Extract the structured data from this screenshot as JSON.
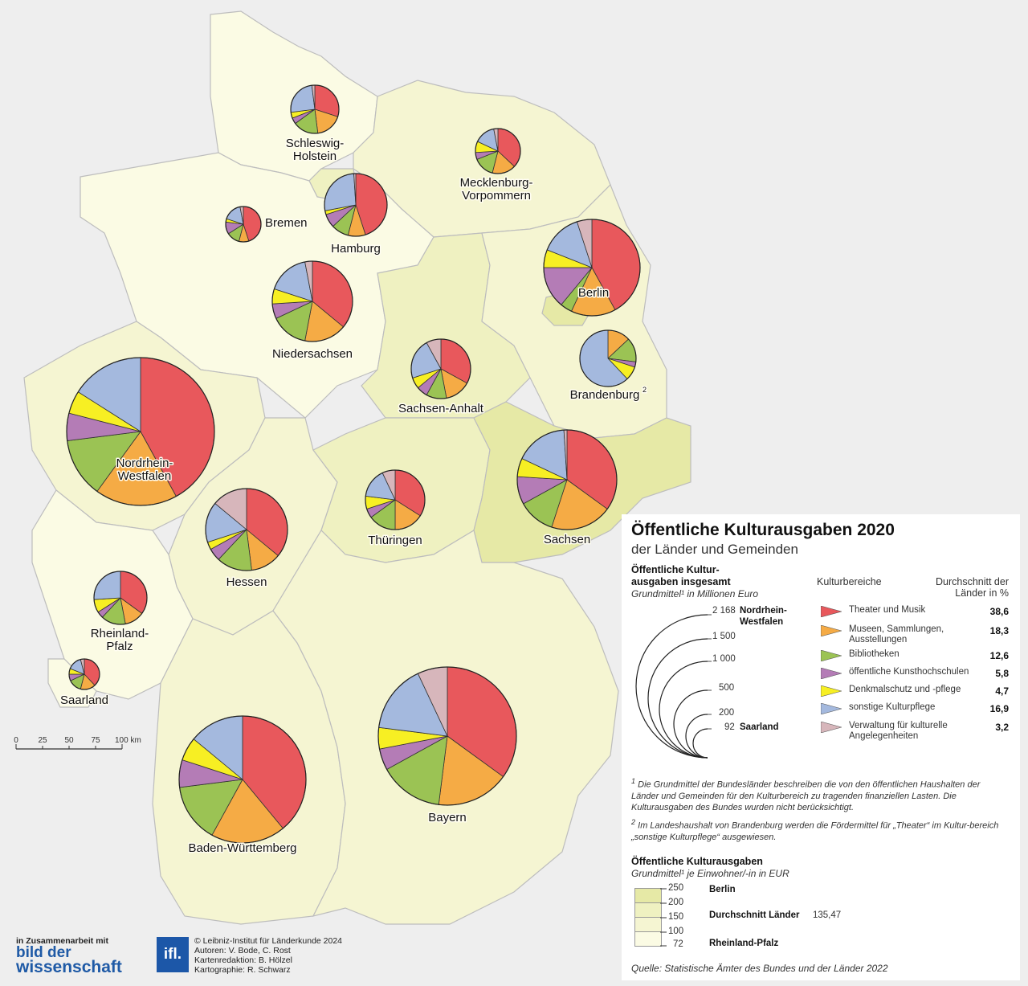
{
  "title": "Öffentliche Kulturausgaben 2020",
  "subtitle": "der Länder und Gemeinden",
  "size_legend": {
    "heading_line1": "Öffentliche Kultur-",
    "heading_line2": "ausgaben insgesamt",
    "unit": "Grundmittel¹ in Millionen Euro",
    "values": [
      "2 168",
      "1 500",
      "1 000",
      "500",
      "200",
      "92"
    ],
    "max_label_1": "Nordrhein-",
    "max_label_2": "Westfalen",
    "min_label": "Saarland"
  },
  "category_header": "Kulturbereiche",
  "average_header_1": "Durchschnitt der",
  "average_header_2": "Länder in %",
  "categories": [
    {
      "label_1": "Theater und Musik",
      "label_2": "",
      "value": "38,6",
      "color": "#e8585c"
    },
    {
      "label_1": "Museen, Sammlungen,",
      "label_2": "Ausstellungen",
      "value": "18,3",
      "color": "#f5ab45"
    },
    {
      "label_1": "Bibliotheken",
      "label_2": "",
      "value": "12,6",
      "color": "#9bc354"
    },
    {
      "label_1": "öffentliche Kunsthochschulen",
      "label_2": "",
      "value": "5,8",
      "color": "#b47cb6"
    },
    {
      "label_1": "Denkmalschutz und -pflege",
      "label_2": "",
      "value": "4,7",
      "color": "#f7ef23"
    },
    {
      "label_1": "sonstige Kulturpflege",
      "label_2": "",
      "value": "16,9",
      "color": "#a4b9de"
    },
    {
      "label_1": "Verwaltung für kulturelle",
      "label_2": "Angelegenheiten",
      "value": "3,2",
      "color": "#d7b6bb"
    }
  ],
  "footnote1": "Die Grundmittel der Bundesländer beschreiben die von den öffentlichen Haushalten der Länder und Gemeinden für den Kulturbereich zu tragenden finanziellen Lasten. Die Kulturausgaben des Bundes wurden nicht berücksichtigt.",
  "footnote2": "Im Landeshaushalt von Brandenburg werden die Fördermittel für „Theater“ im Kultur-bereich „sonstige Kulturpflege“ ausgewiesen.",
  "per_capita": {
    "heading": "Öffentliche Kulturausgaben",
    "unit": "Grundmittel¹ je Einwohner/-in in EUR",
    "ticks": [
      "250",
      "200",
      "150",
      "100",
      "72"
    ],
    "class_colors": [
      "#e6e9a6",
      "#eff1c1",
      "#f5f5d2",
      "#fbfbe4"
    ],
    "marker_max": "Berlin",
    "marker_avg": "Durchschnitt Länder",
    "marker_avg_value": "135,47",
    "marker_min": "Rheinland-Pfalz"
  },
  "source": "Quelle: Statistische Ämter des Bundes und der Länder 2022",
  "scale_bar": {
    "ticks": [
      "0",
      "25",
      "50",
      "75",
      "100 km"
    ]
  },
  "credits": {
    "partner_intro": "in Zusammenarbeit mit",
    "partner_name_1": "bild der",
    "partner_name_2": "wissenschaft",
    "logo_text": "ifl.",
    "line1": "© Leibniz-Institut für Länderkunde 2024",
    "line2": "Autoren: V. Bode, C. Rost",
    "line3": "Kartenredaktion: B. Hölzel",
    "line4": "Kartographie: R. Schwarz"
  },
  "states": [
    {
      "name_1": "Schleswig-",
      "name_2": "Holstein",
      "color": "#fbfbe4",
      "shares": [
        30,
        18,
        17,
        4,
        4,
        25,
        2
      ]
    },
    {
      "name_1": "Mecklenburg-",
      "name_2": "Vorpommern",
      "color": "#f5f5d2",
      "shares": [
        37,
        17,
        15,
        5,
        8,
        15,
        3
      ]
    },
    {
      "name_1": "Hamburg",
      "name_2": "",
      "color": "#eff1c1",
      "shares": [
        45,
        9,
        9,
        7,
        2,
        27,
        1
      ]
    },
    {
      "name_1": "Bremen",
      "name_2": "",
      "color": "#eff1c1",
      "shares": [
        45,
        9,
        12,
        11,
        3,
        17,
        3
      ]
    },
    {
      "name_1": "Niedersachsen",
      "name_2": "",
      "color": "#fbfbe4",
      "shares": [
        36,
        17,
        15,
        6,
        6,
        17,
        3
      ]
    },
    {
      "name_1": "Berlin",
      "name_2": "",
      "color": "#e6e9a6",
      "shares": [
        42,
        15,
        4,
        14,
        6,
        14,
        5
      ]
    },
    {
      "name_1": "Brandenburg",
      "name_2": "",
      "color": "#f5f5d2",
      "shares": [
        0,
        13,
        14,
        3,
        8,
        62,
        0
      ]
    },
    {
      "name_1": "Sachsen-Anhalt",
      "name_2": "",
      "color": "#eff1c1",
      "shares": [
        33,
        14,
        11,
        6,
        6,
        22,
        8
      ]
    },
    {
      "name_1": "Nordrhein-",
      "name_2": "Westfalen",
      "color": "#f5f5d2",
      "shares": [
        42,
        18,
        13,
        6,
        5,
        16,
        0
      ]
    },
    {
      "name_1": "Hessen",
      "name_2": "",
      "color": "#f5f5d2",
      "shares": [
        36,
        12,
        14,
        5,
        3,
        16,
        14
      ]
    },
    {
      "name_1": "Thüringen",
      "name_2": "",
      "color": "#eff1c1",
      "shares": [
        34,
        16,
        15,
        5,
        7,
        16,
        7
      ]
    },
    {
      "name_1": "Sachsen",
      "name_2": "",
      "color": "#e6e9a6",
      "shares": [
        35,
        20,
        12,
        9,
        6,
        17,
        1
      ]
    },
    {
      "name_1": "Rheinland-",
      "name_2": "Pfalz",
      "color": "#fbfbe4",
      "shares": [
        35,
        12,
        15,
        4,
        8,
        26,
        0
      ]
    },
    {
      "name_1": "Saarland",
      "name_2": "",
      "color": "#fbfbe4",
      "shares": [
        38,
        16,
        14,
        7,
        6,
        15,
        4
      ]
    },
    {
      "name_1": "Baden-Württemberg",
      "name_2": "",
      "color": "#f5f5d2",
      "shares": [
        39,
        19,
        15,
        7,
        6,
        14,
        0
      ]
    },
    {
      "name_1": "Bayern",
      "name_2": "",
      "color": "#f5f5d2",
      "shares": [
        35,
        17,
        15,
        5,
        5,
        16,
        7
      ]
    }
  ]
}
